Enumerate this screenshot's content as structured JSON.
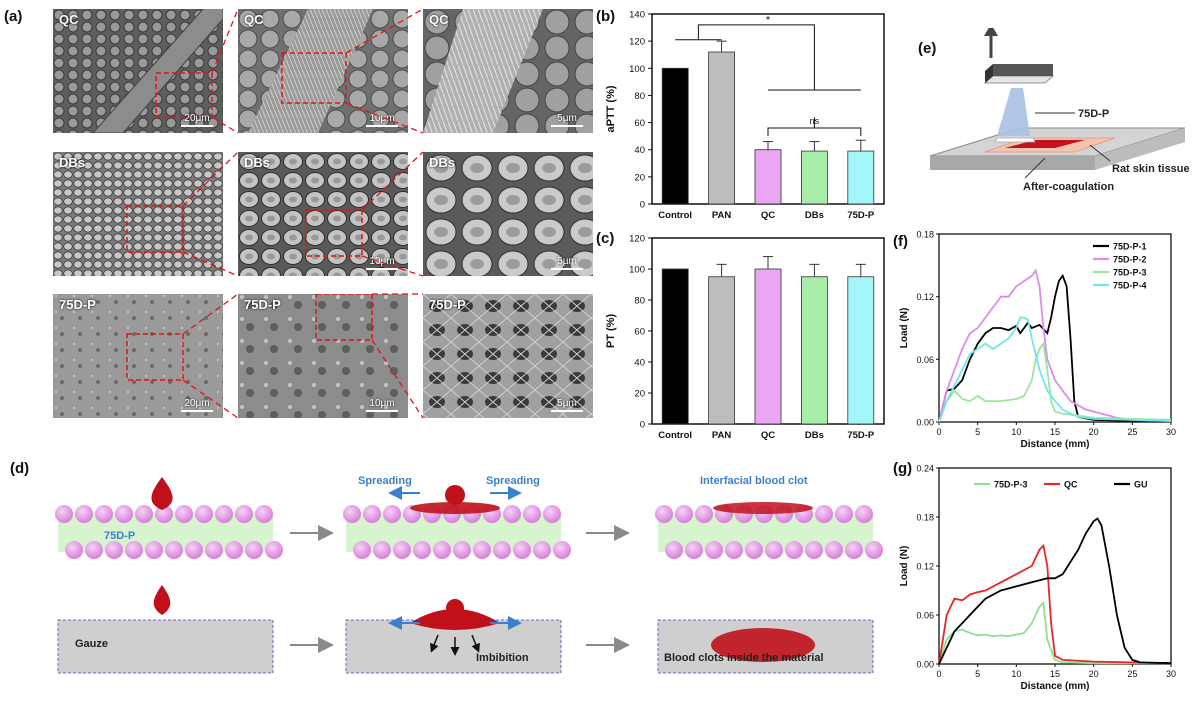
{
  "panels": {
    "a": "(a)",
    "b": "(b)",
    "c": "(c)",
    "d": "(d)",
    "e": "(e)",
    "f": "(f)",
    "g": "(g)"
  },
  "sem": [
    {
      "label": "QC",
      "scale": "20μm"
    },
    {
      "label": "QC",
      "scale": "10μm"
    },
    {
      "label": "QC",
      "scale": "5μm"
    },
    {
      "label": "DBs",
      "scale": ""
    },
    {
      "label": "DBs",
      "scale": "10μm"
    },
    {
      "label": "DBs",
      "scale": "5μm"
    },
    {
      "label": "75D-P",
      "scale": "20μm"
    },
    {
      "label": "75D-P",
      "scale": "10μm"
    },
    {
      "label": "75D-P",
      "scale": "5μm"
    }
  ],
  "colors": {
    "control": "#000000",
    "pan": "#bdbdbd",
    "qc": "#e9a6f2",
    "dbs": "#a8ecaa",
    "p75": "#a3f6f7",
    "blood": "#c0111b",
    "sphere": "#e69be6",
    "layer": "#d8f4cf",
    "arrow": "#3b7fcf"
  },
  "chart_data": [
    {
      "type": "bar",
      "panel": "b",
      "categories": [
        "Control",
        "PAN",
        "QC",
        "DBs",
        "75D-P"
      ],
      "values": [
        100,
        112,
        40,
        39,
        39
      ],
      "errors": [
        0,
        8,
        6,
        7,
        8
      ],
      "ylabel": "aPTT (%)",
      "ylim": [
        0,
        140
      ],
      "yticks": [
        0,
        20,
        40,
        60,
        80,
        100,
        120,
        140
      ],
      "annotations": [
        "*",
        "ns"
      ]
    },
    {
      "type": "bar",
      "panel": "c",
      "categories": [
        "Control",
        "PAN",
        "QC",
        "DBs",
        "75D-P"
      ],
      "values": [
        100,
        95,
        100,
        95,
        95
      ],
      "errors": [
        0,
        8,
        8,
        8,
        8
      ],
      "ylabel": "PT (%)",
      "ylim": [
        0,
        120
      ],
      "yticks": [
        0,
        20,
        40,
        60,
        80,
        100,
        120
      ]
    },
    {
      "type": "line",
      "panel": "f",
      "xlabel": "Distance (mm)",
      "ylabel": "Load (N)",
      "xlim": [
        0,
        30
      ],
      "ylim": [
        0,
        0.18
      ],
      "xticks": [
        0,
        5,
        10,
        15,
        20,
        25,
        30
      ],
      "yticks": [
        "0.00",
        "0.06",
        "0.12",
        "0.18"
      ],
      "legend": "top-right",
      "series": [
        {
          "name": "75D-P-1",
          "color": "#000000",
          "x": [
            0,
            1,
            2,
            3,
            4,
            5,
            6,
            7,
            8,
            9,
            10,
            10.5,
            11,
            11.5,
            12,
            13,
            14,
            14.5,
            15,
            15.5,
            16,
            16.5,
            17,
            17.5,
            18,
            20,
            25,
            30
          ],
          "y": [
            0,
            0.03,
            0.032,
            0.04,
            0.06,
            0.075,
            0.085,
            0.09,
            0.09,
            0.088,
            0.092,
            0.085,
            0.09,
            0.095,
            0.09,
            0.093,
            0.085,
            0.1,
            0.12,
            0.135,
            0.14,
            0.13,
            0.08,
            0.02,
            0.005,
            0.002,
            0.001,
            0.001
          ]
        },
        {
          "name": "75D-P-2",
          "color": "#e08af0",
          "x": [
            0,
            1,
            2,
            3,
            4,
            5,
            6,
            7,
            8,
            9,
            10,
            11,
            12,
            12.5,
            13,
            13.5,
            14,
            15,
            16,
            17,
            19,
            21,
            23,
            25,
            30
          ],
          "y": [
            0,
            0.03,
            0.05,
            0.07,
            0.085,
            0.09,
            0.1,
            0.11,
            0.12,
            0.12,
            0.13,
            0.135,
            0.14,
            0.145,
            0.13,
            0.09,
            0.06,
            0.04,
            0.03,
            0.02,
            0.012,
            0.008,
            0.004,
            0.002,
            0.001
          ]
        },
        {
          "name": "75D-P-3",
          "color": "#9ae69a",
          "x": [
            0,
            1,
            2,
            3,
            4,
            5,
            6,
            8,
            10,
            11,
            12,
            12.5,
            13,
            13.5,
            14,
            14.5,
            15,
            16,
            18,
            20,
            25,
            30
          ],
          "y": [
            0,
            0.02,
            0.03,
            0.022,
            0.02,
            0.025,
            0.02,
            0.02,
            0.022,
            0.025,
            0.04,
            0.06,
            0.07,
            0.075,
            0.05,
            0.02,
            0.01,
            0.008,
            0.006,
            0.004,
            0.003,
            0.002
          ]
        },
        {
          "name": "75D-P-4",
          "color": "#6fe7ee",
          "x": [
            0,
            1,
            2,
            3,
            4,
            5,
            6,
            7,
            8,
            9,
            10,
            10.5,
            11,
            11.5,
            12,
            13,
            14,
            15,
            16,
            17,
            18,
            20,
            25,
            30
          ],
          "y": [
            0,
            0.02,
            0.035,
            0.05,
            0.065,
            0.07,
            0.075,
            0.07,
            0.075,
            0.08,
            0.09,
            0.1,
            0.1,
            0.098,
            0.08,
            0.05,
            0.03,
            0.02,
            0.012,
            0.008,
            0.005,
            0.003,
            0.002,
            0.001
          ]
        }
      ]
    },
    {
      "type": "line",
      "panel": "g",
      "xlabel": "Distance (mm)",
      "ylabel": "Load (N)",
      "xlim": [
        0,
        30
      ],
      "ylim": [
        0,
        0.24
      ],
      "xticks": [
        0,
        5,
        10,
        15,
        20,
        25,
        30
      ],
      "yticks": [
        "0.00",
        "0.06",
        "0.12",
        "0.18",
        "0.24"
      ],
      "legend": "top",
      "series": [
        {
          "name": "75D-P-3",
          "color": "#8fe08f",
          "x": [
            0,
            1,
            2,
            3,
            4,
            5,
            6,
            7,
            8,
            9,
            10,
            11,
            12,
            13,
            13.5,
            14,
            15,
            16,
            20,
            25,
            30
          ],
          "y": [
            0,
            0.03,
            0.04,
            0.042,
            0.038,
            0.035,
            0.036,
            0.034,
            0.035,
            0.034,
            0.036,
            0.038,
            0.05,
            0.07,
            0.075,
            0.03,
            0.005,
            0.002,
            0.001,
            0.001,
            0.001
          ]
        },
        {
          "name": "QC",
          "color": "#e82626",
          "x": [
            0,
            0.5,
            1,
            2,
            3,
            4,
            5,
            6,
            7,
            8,
            9,
            10,
            11,
            12,
            13,
            13.5,
            14,
            14.5,
            15,
            16,
            20,
            25,
            30
          ],
          "y": [
            0,
            0.03,
            0.06,
            0.08,
            0.078,
            0.085,
            0.088,
            0.09,
            0.095,
            0.1,
            0.105,
            0.11,
            0.115,
            0.12,
            0.14,
            0.145,
            0.12,
            0.05,
            0.01,
            0.005,
            0.003,
            0.002,
            0.001
          ]
        },
        {
          "name": "GU",
          "color": "#000000",
          "x": [
            0,
            1,
            2,
            3,
            4,
            5,
            6,
            8,
            10,
            12,
            14,
            15,
            16,
            17,
            18,
            19,
            20,
            20.5,
            21,
            22,
            23,
            24,
            25,
            26,
            30
          ],
          "y": [
            0,
            0.02,
            0.04,
            0.05,
            0.06,
            0.07,
            0.08,
            0.09,
            0.095,
            0.1,
            0.105,
            0.105,
            0.11,
            0.125,
            0.14,
            0.16,
            0.175,
            0.178,
            0.17,
            0.12,
            0.06,
            0.02,
            0.005,
            0.002,
            0.001
          ]
        }
      ]
    }
  ],
  "diagram_d": {
    "label_75dp": "75D-P",
    "label_gauze": "Gauze",
    "spreading_left": "Spreading",
    "spreading_right": "Spreading",
    "interfacial": "Interfacial blood clot",
    "imbibition": "Imbibition",
    "clots_inside": "Blood clots inside the material"
  },
  "diagram_e": {
    "sample": "75D-P",
    "tissue": "Rat skin tissue",
    "after": "After-coagulation"
  }
}
